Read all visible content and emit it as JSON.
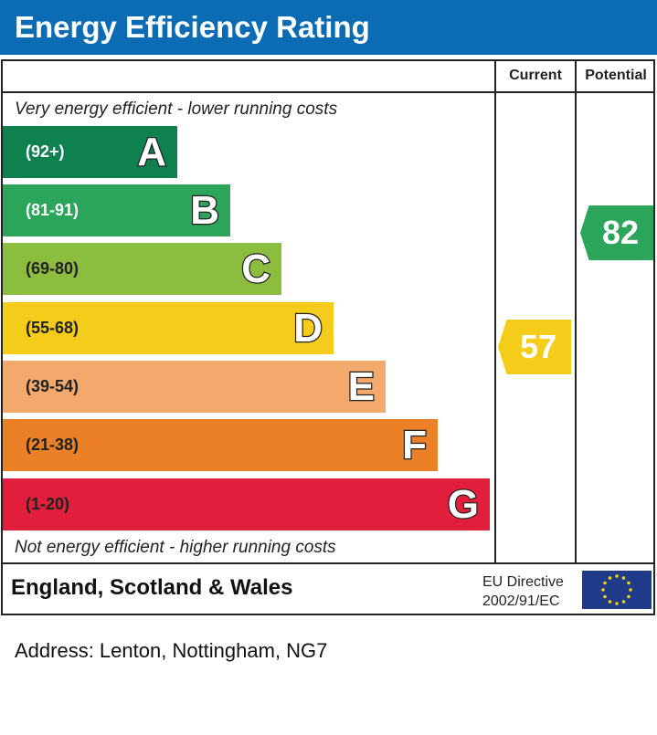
{
  "title": "Energy Efficiency Rating",
  "columns": {
    "current": "Current",
    "potential": "Potential"
  },
  "top_note": "Very energy efficient - lower running costs",
  "bottom_note": "Not energy efficient - higher running costs",
  "footer": {
    "region": "England, Scotland & Wales",
    "directive_line1": "EU Directive",
    "directive_line2": "2002/91/EC",
    "flag": "eu-flag-icon"
  },
  "address": "Address: Lenton, Nottingham, NG7",
  "chart_data": {
    "type": "bar",
    "title": "Energy Efficiency Rating",
    "categories": [
      "A",
      "B",
      "C",
      "D",
      "E",
      "F",
      "G"
    ],
    "bands": [
      {
        "letter": "A",
        "range": "(92+)",
        "color": "#0f8150",
        "text_color": "#ffffff"
      },
      {
        "letter": "B",
        "range": "(81-91)",
        "color": "#2aa55a",
        "text_color": "#ffffff"
      },
      {
        "letter": "C",
        "range": "(69-80)",
        "color": "#8dbd3f",
        "text_color": "#222222"
      },
      {
        "letter": "D",
        "range": "(55-68)",
        "color": "#f5cc1a",
        "text_color": "#222222"
      },
      {
        "letter": "E",
        "range": "(39-54)",
        "color": "#f2a96b",
        "text_color": "#222222"
      },
      {
        "letter": "F",
        "range": "(21-38)",
        "color": "#ec8026",
        "text_color": "#222222"
      },
      {
        "letter": "G",
        "range": "(1-20)",
        "color": "#e11f3c",
        "text_color": "#222222"
      }
    ],
    "current": {
      "value": "57",
      "band": "D",
      "color": "#f5cc1a"
    },
    "potential": {
      "value": "82",
      "band": "B",
      "color": "#2aa55a"
    }
  }
}
